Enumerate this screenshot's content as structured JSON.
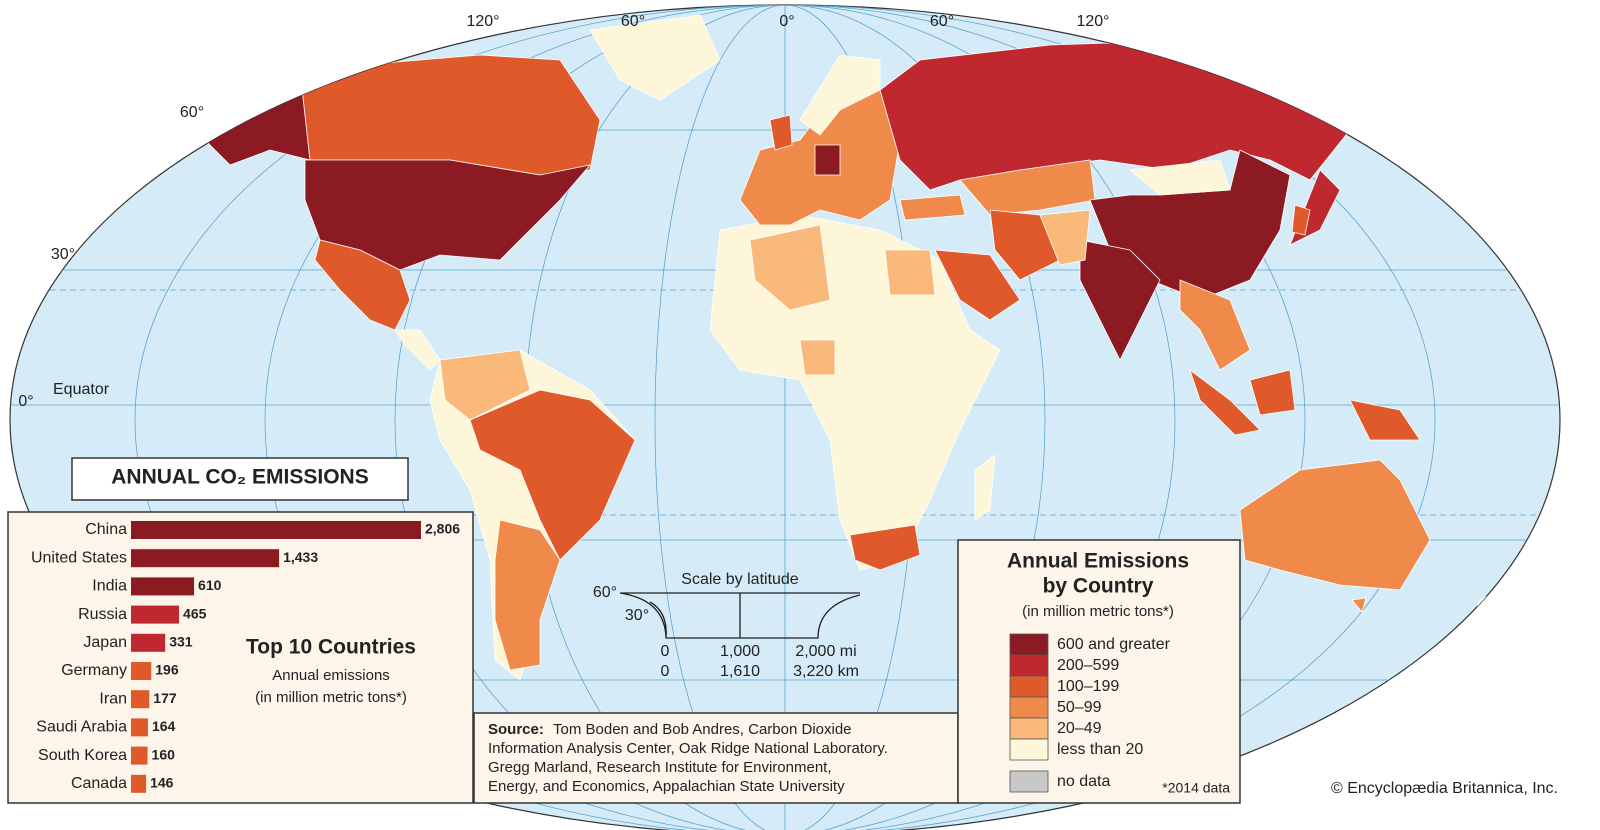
{
  "map": {
    "longitude_labels": [
      "120°",
      "60°",
      "0°",
      "60°",
      "120°"
    ],
    "latitude_labels": [
      "60°",
      "30°",
      "0°"
    ],
    "equator": "Equator"
  },
  "chart_data": {
    "type": "bar",
    "title": "ANNUAL CO₂ EMISSIONS",
    "subtitle": "Top 10 Countries",
    "note": [
      "Annual emissions",
      "(in million metric tons*)"
    ],
    "categories": [
      "China",
      "United States",
      "India",
      "Russia",
      "Japan",
      "Germany",
      "Iran",
      "Saudi Arabia",
      "South Korea",
      "Canada"
    ],
    "values": [
      2806,
      1433,
      610,
      465,
      331,
      196,
      177,
      164,
      160,
      146
    ],
    "value_labels": [
      "2,806",
      "1,433",
      "610",
      "465",
      "331",
      "196",
      "177",
      "164",
      "160",
      "146"
    ],
    "colors": [
      "#8b1a22",
      "#8b1a22",
      "#8b1a22",
      "#c0282f",
      "#c0282f",
      "#e0592a",
      "#e0592a",
      "#e0592a",
      "#e0592a",
      "#e0592a"
    ]
  },
  "legend": {
    "title": [
      "Annual Emissions",
      "by Country"
    ],
    "subtitle": "(in million metric tons*)",
    "items": [
      {
        "label": "600 and greater",
        "color": "#8b1a22"
      },
      {
        "label": "200–599",
        "color": "#c0282f"
      },
      {
        "label": "100–199",
        "color": "#e0592a"
      },
      {
        "label": "50–99",
        "color": "#f08a4b"
      },
      {
        "label": "20–49",
        "color": "#f9b97a"
      },
      {
        "label": "less than 20",
        "color": "#fdf6d8"
      }
    ],
    "no_data": {
      "label": "no data",
      "color": "#c8c8c8"
    },
    "footnote": "*2014 data"
  },
  "scale": {
    "title": "Scale by latitude",
    "latitudes": [
      "60°",
      "30°"
    ],
    "miles": [
      "0",
      "1,000",
      "2,000 mi"
    ],
    "km": [
      "0",
      "1,610",
      "3,220 km"
    ]
  },
  "source": {
    "label": "Source:",
    "lines": [
      "Tom Boden and Bob Andres, Carbon Dioxide",
      "Information Analysis Center, Oak Ridge National Laboratory.",
      "Gregg Marland, Research Institute for Environment,",
      "Energy, and Economics, Appalachian State University"
    ]
  },
  "credit": "© Encyclopædia Britannica, Inc."
}
